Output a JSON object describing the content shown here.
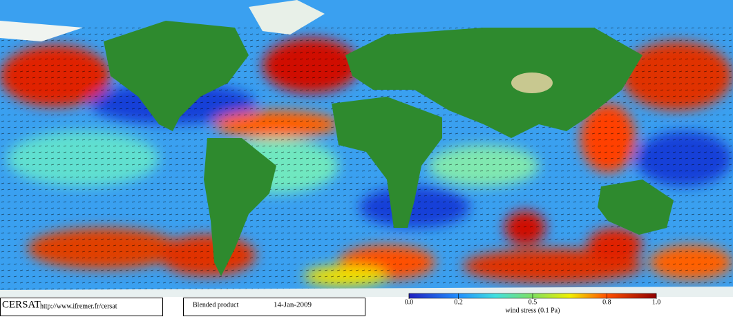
{
  "footer": {
    "logo": "CERSAT",
    "url": "http://www.ifremer.fr/cersat",
    "product": "Blended product",
    "date": "14-Jan-2009"
  },
  "colorbar": {
    "label": "wind stress (0.1 Pa)",
    "xlim": [
      0,
      1
    ],
    "ticks": [
      {
        "value": 0,
        "label": "0.0"
      },
      {
        "value": 0.2,
        "label": "0.2"
      },
      {
        "value": 0.5,
        "label": "0.5"
      },
      {
        "value": 0.8,
        "label": "0.8"
      },
      {
        "value": 1,
        "label": "1.0"
      }
    ]
  }
}
